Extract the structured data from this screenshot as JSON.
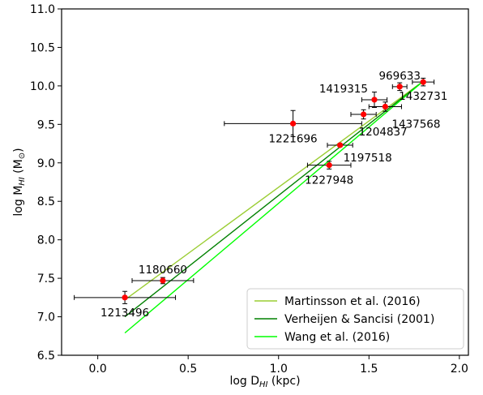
{
  "chart_data": {
    "type": "scatter",
    "title": "",
    "xlabel": "log D",
    "xlabel_sub": "HI",
    "xlabel_unit": " (kpc)",
    "ylabel": "log M",
    "ylabel_sub": "HI",
    "ylabel_unit": " (M",
    "ylabel_unit_symbol": "⊙",
    "ylabel_unit_close": ")",
    "xlim": [
      -0.2,
      2.05
    ],
    "ylim": [
      6.5,
      11.0
    ],
    "xticks": [
      0.0,
      0.5,
      1.0,
      1.5,
      2.0
    ],
    "xtick_labels": [
      "0.0",
      "0.5",
      "1.0",
      "1.5",
      "2.0"
    ],
    "yticks": [
      6.5,
      7.0,
      7.5,
      8.0,
      8.5,
      9.0,
      9.5,
      10.0,
      10.5,
      11.0
    ],
    "ytick_labels": [
      "6.5",
      "7.0",
      "7.5",
      "8.0",
      "8.5",
      "9.0",
      "9.5",
      "10.0",
      "10.5",
      "11.0"
    ],
    "grid": false,
    "legend_position": "lower-right",
    "points": [
      {
        "label": "1213496",
        "x": 0.15,
        "y": 7.25,
        "xerr": [
          0.28,
          0.28
        ],
        "yerr": [
          0.08,
          0.08
        ],
        "label_pos": "below"
      },
      {
        "label": "1180660",
        "x": 0.36,
        "y": 7.47,
        "xerr": [
          0.17,
          0.17
        ],
        "yerr": [
          0.04,
          0.04
        ],
        "label_pos": "above"
      },
      {
        "label": "1227948",
        "x": 1.28,
        "y": 8.97,
        "xerr": [
          0.12,
          0.12
        ],
        "yerr": [
          0.05,
          0.05
        ],
        "label_pos": "below"
      },
      {
        "label": "1197518",
        "x": 1.34,
        "y": 9.23,
        "xerr": [
          0.07,
          0.07
        ],
        "yerr": [
          0.02,
          0.02
        ],
        "label_pos": "below-right"
      },
      {
        "label": "1221696",
        "x": 1.08,
        "y": 9.51,
        "xerr": [
          0.38,
          0.38
        ],
        "yerr": [
          0.17,
          0.17
        ],
        "label_pos": "below"
      },
      {
        "label": "1204837",
        "x": 1.47,
        "y": 9.63,
        "xerr": [
          0.07,
          0.07
        ],
        "yerr": [
          0.06,
          0.06
        ],
        "label_pos": "below-right"
      },
      {
        "label": "1437568",
        "x": 1.59,
        "y": 9.73,
        "xerr": [
          0.09,
          0.09
        ],
        "yerr": [
          0.06,
          0.06
        ],
        "label_pos": "right"
      },
      {
        "label": "1419315",
        "x": 1.53,
        "y": 9.82,
        "xerr": [
          0.07,
          0.07
        ],
        "yerr": [
          0.1,
          0.1
        ],
        "label_pos": "above-left"
      },
      {
        "label": "969633",
        "x": 1.67,
        "y": 9.99,
        "xerr": [
          0.04,
          0.04
        ],
        "yerr": [
          0.05,
          0.05
        ],
        "label_pos": "above"
      },
      {
        "label": "1432731",
        "x": 1.8,
        "y": 10.05,
        "xerr": [
          0.06,
          0.06
        ],
        "yerr": [
          0.05,
          0.05
        ],
        "label_pos": "below"
      }
    ],
    "series": [
      {
        "name": "Martinsson et al. (2016)",
        "color": "#9acd32",
        "x": [
          0.15,
          1.8
        ],
        "y": [
          7.22,
          10.06
        ]
      },
      {
        "name": "Verheijen & Sancisi (2001)",
        "color": "#008000",
        "x": [
          0.15,
          1.8
        ],
        "y": [
          7.0,
          10.06
        ]
      },
      {
        "name": "Wang et al. (2016)",
        "color": "#00ff00",
        "x": [
          0.15,
          1.8
        ],
        "y": [
          6.79,
          10.06
        ]
      }
    ],
    "point_color": "#ff0000",
    "errorbar_color": "#000000"
  }
}
